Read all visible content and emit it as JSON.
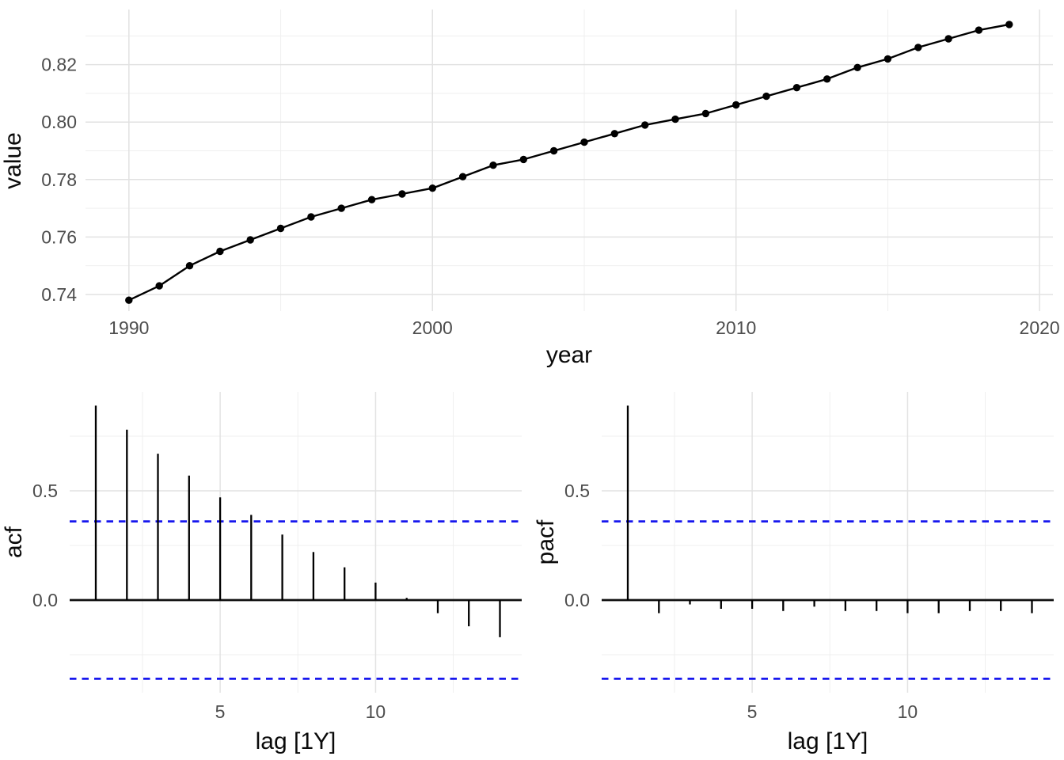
{
  "page": {
    "background": "#FFFFFF"
  },
  "style": {
    "series_color": "#000000",
    "ci_color": "#1717EE",
    "grid_major_color": "#E2E2E2",
    "grid_minor_color": "#EFEFEF",
    "tick_label_color": "#4D4D4D",
    "axis_title_color": "#0A0A0A",
    "zero_line_color": "#111111"
  },
  "chart_data": [
    {
      "id": "value-time-series",
      "type": "line",
      "title": "",
      "xlabel": "year",
      "ylabel": "value",
      "x": [
        1990,
        1991,
        1992,
        1993,
        1994,
        1995,
        1996,
        1997,
        1998,
        1999,
        2000,
        2001,
        2002,
        2003,
        2004,
        2005,
        2006,
        2007,
        2008,
        2009,
        2010,
        2011,
        2012,
        2013,
        2014,
        2015,
        2016,
        2017,
        2018,
        2019
      ],
      "y": [
        0.738,
        0.743,
        0.75,
        0.755,
        0.759,
        0.763,
        0.767,
        0.77,
        0.773,
        0.775,
        0.777,
        0.781,
        0.785,
        0.787,
        0.79,
        0.793,
        0.796,
        0.799,
        0.801,
        0.803,
        0.806,
        0.809,
        0.812,
        0.815,
        0.819,
        0.822,
        0.826,
        0.829,
        0.832,
        0.834
      ],
      "x_ticks": {
        "values": [
          1990,
          2000,
          2010,
          2020
        ],
        "labels": [
          "1990",
          "2000",
          "2010",
          "2020"
        ]
      },
      "y_ticks": {
        "values": [
          0.74,
          0.76,
          0.78,
          0.8,
          0.82
        ],
        "labels": [
          "0.74",
          "0.76",
          "0.78",
          "0.80",
          "0.82"
        ]
      },
      "x_minor": [
        1995,
        2005,
        2015
      ],
      "y_minor": [
        0.75,
        0.77,
        0.79,
        0.81,
        0.83
      ],
      "xlim": [
        1988.57,
        2020.44
      ],
      "ylim": [
        0.7342,
        0.8392
      ],
      "grid": "on",
      "legend": "none",
      "marker": "filled-circle"
    },
    {
      "id": "acf",
      "type": "bar",
      "subtype": "stem",
      "title": "",
      "xlabel": "lag [1Y]",
      "ylabel": "acf",
      "x": [
        1,
        2,
        3,
        4,
        5,
        6,
        7,
        8,
        9,
        10,
        11,
        12,
        13,
        14
      ],
      "values": [
        0.89,
        0.78,
        0.67,
        0.57,
        0.47,
        0.39,
        0.3,
        0.22,
        0.15,
        0.08,
        0.01,
        -0.06,
        -0.12,
        -0.17
      ],
      "ci_bound": 0.36,
      "ci_style": "dashed",
      "x_ticks": {
        "values": [
          5,
          10
        ],
        "labels": [
          "5",
          "10"
        ]
      },
      "y_ticks": {
        "values": [
          0,
          0.5
        ],
        "labels": [
          "0.0",
          "0.5"
        ]
      },
      "x_minor": [
        2.5,
        7.5,
        12.5
      ],
      "y_minor": [
        -0.25,
        0.25,
        0.75
      ],
      "xlim": [
        0.16,
        14.7
      ],
      "ylim": [
        -0.424,
        0.953
      ],
      "grid": "on",
      "legend": "none"
    },
    {
      "id": "pacf",
      "type": "bar",
      "subtype": "stem",
      "title": "",
      "xlabel": "lag [1Y]",
      "ylabel": "pacf",
      "x": [
        1,
        2,
        3,
        4,
        5,
        6,
        7,
        8,
        9,
        10,
        11,
        12,
        13,
        14
      ],
      "values": [
        0.89,
        -0.06,
        -0.02,
        -0.04,
        -0.04,
        -0.05,
        -0.03,
        -0.05,
        -0.05,
        -0.06,
        -0.06,
        -0.05,
        -0.05,
        -0.06
      ],
      "ci_bound": 0.36,
      "ci_style": "dashed",
      "x_ticks": {
        "values": [
          5,
          10
        ],
        "labels": [
          "5",
          "10"
        ]
      },
      "y_ticks": {
        "values": [
          0,
          0.5
        ],
        "labels": [
          "0.0",
          "0.5"
        ]
      },
      "x_minor": [
        2.5,
        7.5,
        12.5
      ],
      "y_minor": [
        -0.25,
        0.25,
        0.75
      ],
      "xlim": [
        0.16,
        14.7
      ],
      "ylim": [
        -0.424,
        0.953
      ],
      "grid": "on",
      "legend": "none"
    }
  ]
}
